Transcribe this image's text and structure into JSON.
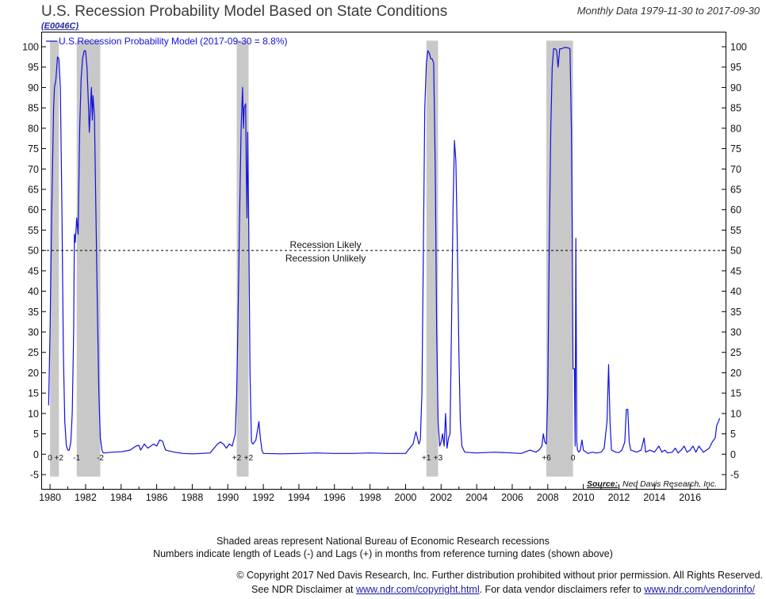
{
  "header": {
    "title": "U.S. Recession Probability Model Based on State Conditions",
    "code": "(E0046C)",
    "date_range": "Monthly Data 1979-11-30 to 2017-09-30"
  },
  "footer": {
    "line1": "Shaded areas represent National Bureau of Economic Research recessions",
    "line2": "Numbers indicate length of Leads (-) and Lags (+) in months from reference turning dates (shown above)",
    "copyright": "© Copyright 2017 Ned Davis Research, Inc. Further distribution prohibited without prior permission. All Rights Reserved.",
    "disclaimer_prefix": "See NDR Disclaimer at ",
    "disclaimer_link1": "www.ndr.com/copyright.html",
    "disclaimer_mid": ". For data vendor disclaimers refer to ",
    "disclaimer_link2": "www.ndr.com/vendorinfo/"
  },
  "chart_data": {
    "type": "line",
    "legend": "U.S.Recession Probability Model (2017-09-30 = 8.8%)",
    "source_label": "Source:",
    "source_text": "Ned Davis Research, Inc.",
    "threshold": {
      "value": 50,
      "above_label": "Recession Likely",
      "below_label": "Recession Unlikely"
    },
    "ylim": [
      -8.5,
      103.5
    ],
    "yticks": [
      -5,
      0,
      5,
      10,
      15,
      20,
      25,
      30,
      35,
      40,
      45,
      50,
      55,
      60,
      65,
      70,
      75,
      80,
      85,
      90,
      95,
      100
    ],
    "xlim": [
      1979.55,
      2018.0
    ],
    "xticks": [
      1980,
      1982,
      1984,
      1986,
      1988,
      1990,
      1992,
      1994,
      1996,
      1998,
      2000,
      2002,
      2004,
      2006,
      2008,
      2010,
      2012,
      2014,
      2016
    ],
    "colors": {
      "line": "#1010e0",
      "shade": "#c8c8c8",
      "threshold": "#000000"
    },
    "recessions": [
      {
        "start": 1980.0,
        "end": 1980.5,
        "labels": [
          "0",
          "+2"
        ]
      },
      {
        "start": 1981.5,
        "end": 1982.83,
        "labels": [
          "-1",
          "-2"
        ]
      },
      {
        "start": 1990.5,
        "end": 1991.17,
        "labels": [
          "+2",
          "+2"
        ]
      },
      {
        "start": 2001.17,
        "end": 2001.83,
        "labels": [
          "+1",
          "+3"
        ]
      },
      {
        "start": 2007.92,
        "end": 2009.42,
        "labels": [
          "+6",
          "0"
        ]
      }
    ],
    "series": [
      {
        "name": "U.S.Recession Probability Model",
        "points": [
          [
            1979.92,
            12
          ],
          [
            1980.0,
            30
          ],
          [
            1980.1,
            60
          ],
          [
            1980.2,
            85
          ],
          [
            1980.25,
            90
          ],
          [
            1980.33,
            92
          ],
          [
            1980.42,
            97.5
          ],
          [
            1980.5,
            97
          ],
          [
            1980.58,
            90
          ],
          [
            1980.67,
            60
          ],
          [
            1980.75,
            25
          ],
          [
            1980.83,
            8
          ],
          [
            1980.92,
            2
          ],
          [
            1981.0,
            1
          ],
          [
            1981.08,
            1
          ],
          [
            1981.17,
            3
          ],
          [
            1981.25,
            10
          ],
          [
            1981.33,
            30
          ],
          [
            1981.37,
            54
          ],
          [
            1981.42,
            52
          ],
          [
            1981.5,
            58
          ],
          [
            1981.58,
            54
          ],
          [
            1981.67,
            80
          ],
          [
            1981.75,
            92
          ],
          [
            1981.83,
            97
          ],
          [
            1981.92,
            99
          ],
          [
            1982.0,
            99
          ],
          [
            1982.08,
            95
          ],
          [
            1982.17,
            85
          ],
          [
            1982.21,
            79
          ],
          [
            1982.25,
            83
          ],
          [
            1982.33,
            90
          ],
          [
            1982.38,
            82
          ],
          [
            1982.42,
            88
          ],
          [
            1982.5,
            83
          ],
          [
            1982.58,
            60
          ],
          [
            1982.67,
            35
          ],
          [
            1982.75,
            15
          ],
          [
            1982.83,
            4
          ],
          [
            1982.92,
            1
          ],
          [
            1983.0,
            0.3
          ],
          [
            1983.5,
            0.5
          ],
          [
            1984.0,
            0.6
          ],
          [
            1984.5,
            1.0
          ],
          [
            1984.83,
            2.0
          ],
          [
            1985.0,
            2.2
          ],
          [
            1985.1,
            1.0
          ],
          [
            1985.3,
            2.5
          ],
          [
            1985.5,
            1.5
          ],
          [
            1985.83,
            2.5
          ],
          [
            1986.0,
            2.0
          ],
          [
            1986.17,
            3.5
          ],
          [
            1986.33,
            3.2
          ],
          [
            1986.5,
            1.0
          ],
          [
            1987.0,
            0.5
          ],
          [
            1987.5,
            0.2
          ],
          [
            1988.0,
            0.1
          ],
          [
            1988.5,
            0.2
          ],
          [
            1989.0,
            0.3
          ],
          [
            1989.42,
            2.5
          ],
          [
            1989.58,
            3.0
          ],
          [
            1989.75,
            2.5
          ],
          [
            1989.92,
            1.5
          ],
          [
            1990.08,
            2.5
          ],
          [
            1990.25,
            2.0
          ],
          [
            1990.42,
            5
          ],
          [
            1990.5,
            15
          ],
          [
            1990.58,
            35
          ],
          [
            1990.67,
            60
          ],
          [
            1990.75,
            80
          ],
          [
            1990.83,
            90
          ],
          [
            1990.88,
            80
          ],
          [
            1990.92,
            85
          ],
          [
            1991.0,
            86
          ],
          [
            1991.04,
            70
          ],
          [
            1991.08,
            58
          ],
          [
            1991.12,
            79
          ],
          [
            1991.17,
            60
          ],
          [
            1991.25,
            20
          ],
          [
            1991.33,
            3
          ],
          [
            1991.42,
            2.5
          ],
          [
            1991.58,
            3.5
          ],
          [
            1991.75,
            8
          ],
          [
            1991.83,
            4
          ],
          [
            1991.92,
            1
          ],
          [
            1992.0,
            0.2
          ],
          [
            1993.0,
            0.1
          ],
          [
            1994.0,
            0.2
          ],
          [
            1995.0,
            0.3
          ],
          [
            1996.0,
            0.2
          ],
          [
            1997.0,
            0.2
          ],
          [
            1998.0,
            0.3
          ],
          [
            1999.0,
            0.2
          ],
          [
            2000.0,
            0.2
          ],
          [
            2000.42,
            2.5
          ],
          [
            2000.58,
            5.5
          ],
          [
            2000.75,
            2.5
          ],
          [
            2000.83,
            3.5
          ],
          [
            2000.92,
            15
          ],
          [
            2001.0,
            50
          ],
          [
            2001.08,
            85
          ],
          [
            2001.17,
            96
          ],
          [
            2001.25,
            99
          ],
          [
            2001.33,
            98.5
          ],
          [
            2001.42,
            97
          ],
          [
            2001.5,
            97
          ],
          [
            2001.58,
            96
          ],
          [
            2001.67,
            70
          ],
          [
            2001.75,
            30
          ],
          [
            2001.83,
            8
          ],
          [
            2001.92,
            2
          ],
          [
            2002.0,
            3
          ],
          [
            2002.08,
            5
          ],
          [
            2002.17,
            2
          ],
          [
            2002.25,
            10
          ],
          [
            2002.33,
            1.5
          ],
          [
            2002.42,
            4
          ],
          [
            2002.5,
            5
          ],
          [
            2002.58,
            30
          ],
          [
            2002.67,
            60
          ],
          [
            2002.75,
            77
          ],
          [
            2002.83,
            72
          ],
          [
            2002.92,
            50
          ],
          [
            2003.0,
            25
          ],
          [
            2003.08,
            8
          ],
          [
            2003.17,
            2
          ],
          [
            2003.33,
            0.5
          ],
          [
            2004.0,
            0.3
          ],
          [
            2005.0,
            0.5
          ],
          [
            2006.0,
            0.3
          ],
          [
            2006.5,
            0.2
          ],
          [
            2007.0,
            1
          ],
          [
            2007.33,
            0.5
          ],
          [
            2007.5,
            1
          ],
          [
            2007.67,
            2
          ],
          [
            2007.75,
            5
          ],
          [
            2007.83,
            3
          ],
          [
            2007.92,
            2.5
          ],
          [
            2008.0,
            15
          ],
          [
            2008.08,
            50
          ],
          [
            2008.17,
            80
          ],
          [
            2008.25,
            95
          ],
          [
            2008.33,
            99.5
          ],
          [
            2008.42,
            99.5
          ],
          [
            2008.5,
            99
          ],
          [
            2008.58,
            95
          ],
          [
            2008.67,
            99.5
          ],
          [
            2008.75,
            99.5
          ],
          [
            2008.83,
            99.6
          ],
          [
            2008.92,
            99.8
          ],
          [
            2009.0,
            99.8
          ],
          [
            2009.17,
            99.7
          ],
          [
            2009.25,
            99.5
          ],
          [
            2009.33,
            80
          ],
          [
            2009.38,
            50
          ],
          [
            2009.42,
            21
          ],
          [
            2009.5,
            21
          ],
          [
            2009.54,
            2
          ],
          [
            2009.58,
            53
          ],
          [
            2009.63,
            3
          ],
          [
            2009.67,
            1
          ],
          [
            2009.75,
            0.5
          ],
          [
            2009.83,
            1
          ],
          [
            2009.92,
            3.5
          ],
          [
            2010.0,
            1
          ],
          [
            2010.25,
            0.2
          ],
          [
            2010.5,
            0.5
          ],
          [
            2010.75,
            0.3
          ],
          [
            2011.0,
            0.5
          ],
          [
            2011.17,
            1.5
          ],
          [
            2011.33,
            8
          ],
          [
            2011.42,
            22
          ],
          [
            2011.5,
            8
          ],
          [
            2011.58,
            1
          ],
          [
            2011.83,
            0.5
          ],
          [
            2012.0,
            0.4
          ],
          [
            2012.17,
            1
          ],
          [
            2012.33,
            3
          ],
          [
            2012.42,
            11
          ],
          [
            2012.5,
            11
          ],
          [
            2012.58,
            3
          ],
          [
            2012.67,
            1
          ],
          [
            2013.0,
            0.5
          ],
          [
            2013.25,
            1
          ],
          [
            2013.42,
            4
          ],
          [
            2013.5,
            0.5
          ],
          [
            2013.75,
            1
          ],
          [
            2014.0,
            0.5
          ],
          [
            2014.25,
            2
          ],
          [
            2014.42,
            0.5
          ],
          [
            2014.58,
            1
          ],
          [
            2014.75,
            0.3
          ],
          [
            2015.0,
            0.5
          ],
          [
            2015.17,
            1.5
          ],
          [
            2015.33,
            0.3
          ],
          [
            2015.5,
            1
          ],
          [
            2015.67,
            2
          ],
          [
            2015.83,
            0.5
          ],
          [
            2016.0,
            1
          ],
          [
            2016.17,
            2
          ],
          [
            2016.33,
            0.5
          ],
          [
            2016.5,
            2
          ],
          [
            2016.58,
            1.5
          ],
          [
            2016.75,
            0.5
          ],
          [
            2016.92,
            1
          ],
          [
            2017.08,
            1.5
          ],
          [
            2017.25,
            3
          ],
          [
            2017.42,
            4
          ],
          [
            2017.5,
            7
          ],
          [
            2017.67,
            8.8
          ]
        ]
      }
    ]
  }
}
